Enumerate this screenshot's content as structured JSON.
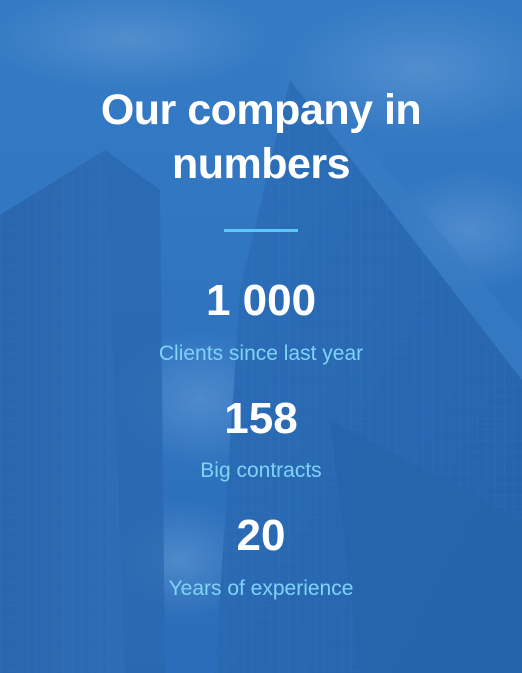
{
  "section": {
    "title_line_1": "Our company in",
    "title_line_2": "numbers",
    "background_icon": "skyscraper-photo",
    "colors": {
      "overlay": "#2b6fbc",
      "accent": "#5cc8f4",
      "label": "#7fd3f7",
      "text": "#ffffff"
    }
  },
  "stats": [
    {
      "value": "1 000",
      "label": "Clients since last year"
    },
    {
      "value": "158",
      "label": "Big contracts"
    },
    {
      "value": "20",
      "label": "Years of experience"
    }
  ]
}
